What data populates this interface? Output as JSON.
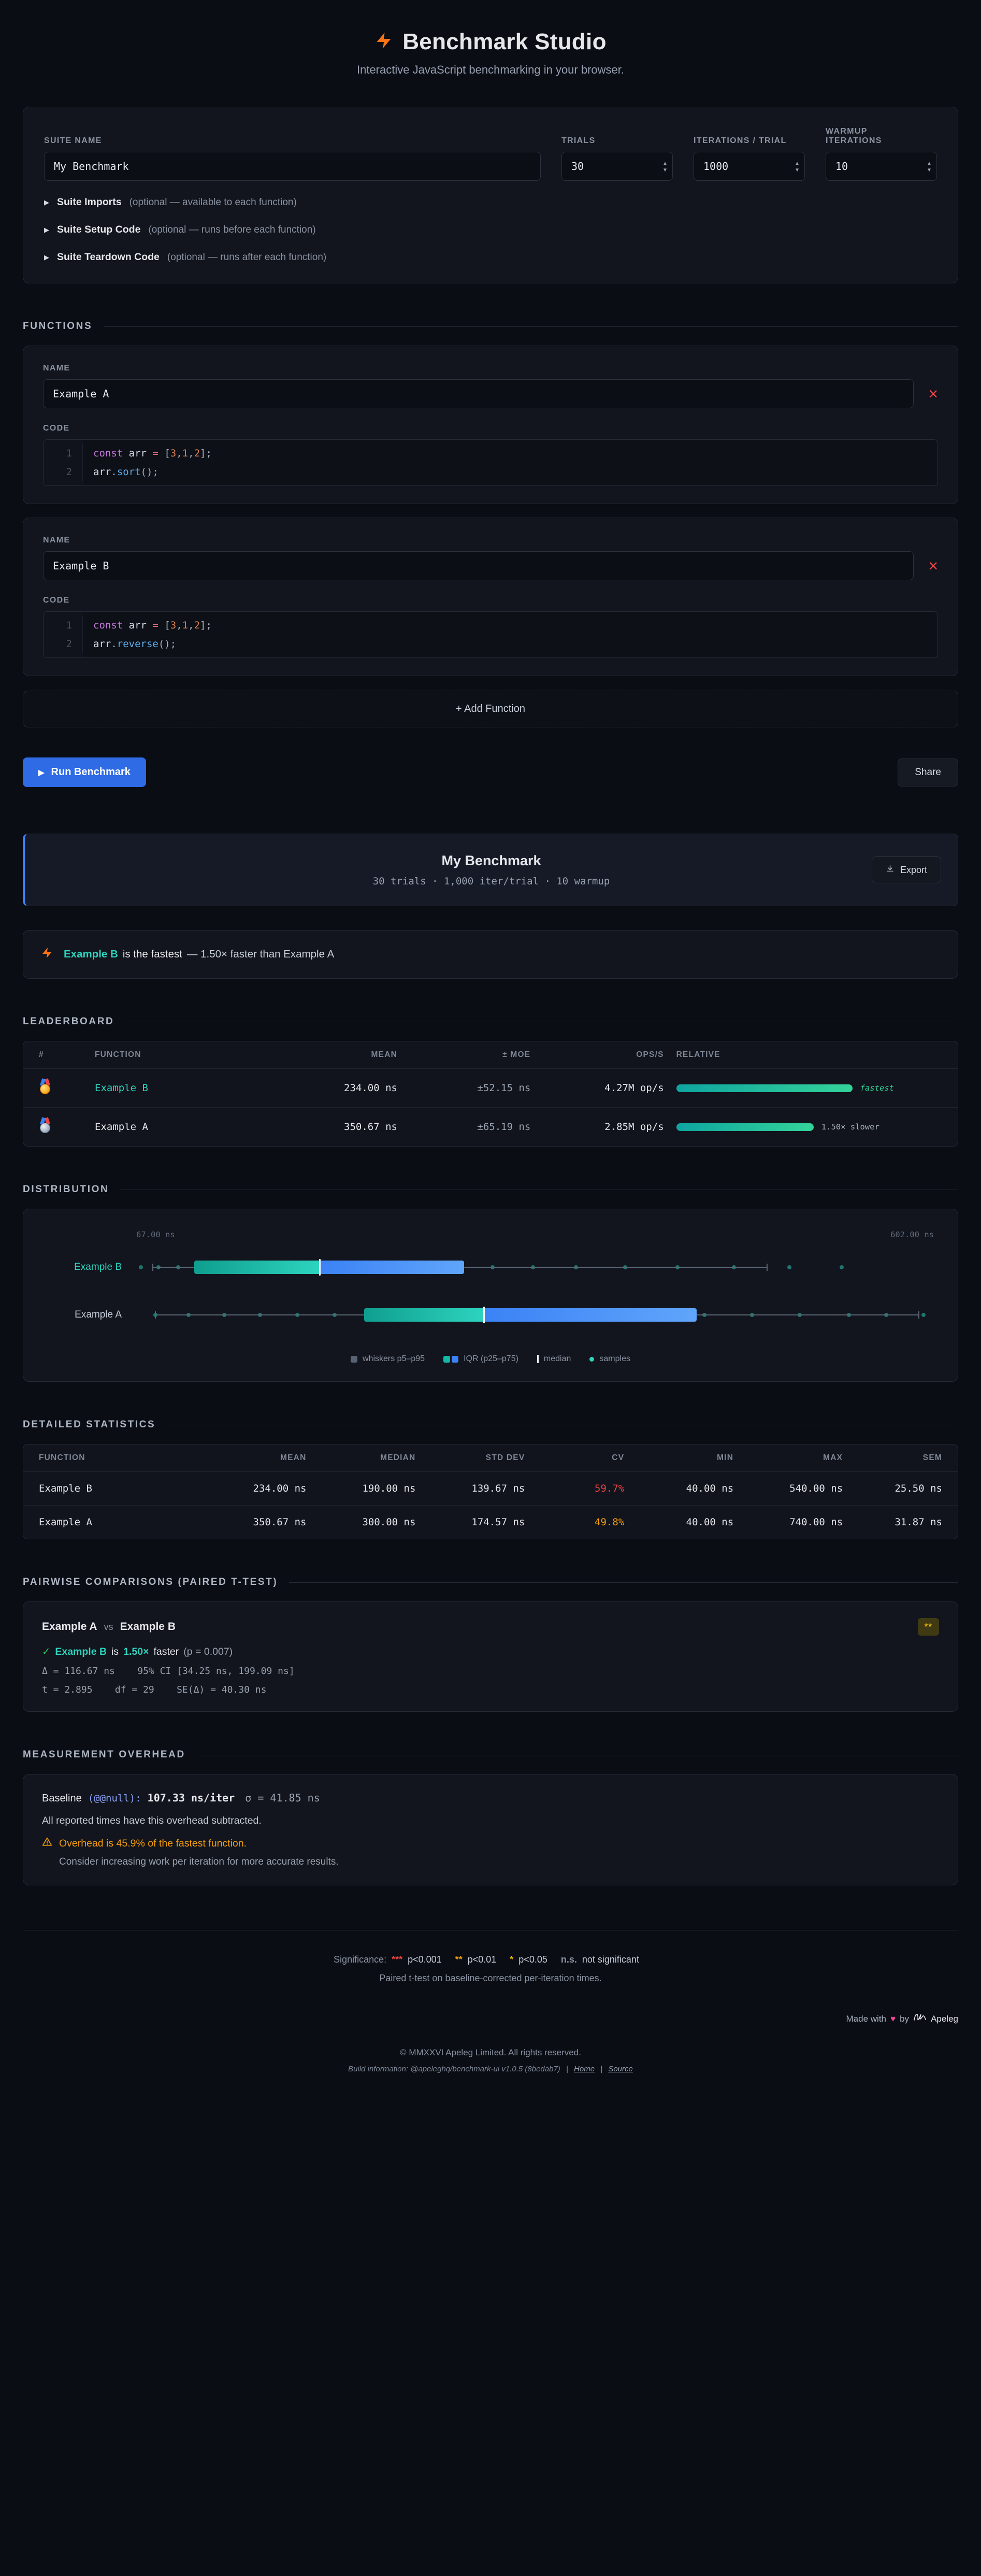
{
  "header": {
    "title": "Benchmark Studio",
    "subtitle": "Interactive JavaScript benchmarking in your browser."
  },
  "suite": {
    "name_label": "SUITE NAME",
    "name_value": "My Benchmark",
    "trials_label": "TRIALS",
    "trials_value": "30",
    "iterations_label": "ITERATIONS / TRIAL",
    "iterations_value": "1000",
    "warmup_label": "WARMUP\nITERATIONS",
    "warmup_value": "10",
    "collapsibles": [
      {
        "title": "Suite Imports",
        "hint": "(optional — available to each function)"
      },
      {
        "title": "Suite Setup Code",
        "hint": "(optional — runs before each function)"
      },
      {
        "title": "Suite Teardown Code",
        "hint": "(optional — runs after each function)"
      }
    ]
  },
  "functions": {
    "heading": "FUNCTIONS",
    "name_label": "NAME",
    "code_label": "CODE",
    "add_label": "+ Add Function",
    "items": [
      {
        "name": "Example A",
        "lines": [
          [
            [
              "kw",
              "const"
            ],
            [
              "pl",
              " arr "
            ],
            [
              "op",
              "="
            ],
            [
              "pl",
              " "
            ],
            [
              "pu",
              "["
            ],
            [
              "nu",
              "3"
            ],
            [
              "pu",
              ","
            ],
            [
              "nu",
              "1"
            ],
            [
              "pu",
              ","
            ],
            [
              "nu",
              "2"
            ],
            [
              "pu",
              "];"
            ]
          ],
          [
            [
              "pl",
              "arr"
            ],
            [
              "pu",
              "."
            ],
            [
              "fn",
              "sort"
            ],
            [
              "pu",
              "();"
            ]
          ]
        ]
      },
      {
        "name": "Example B",
        "lines": [
          [
            [
              "kw",
              "const"
            ],
            [
              "pl",
              " arr "
            ],
            [
              "op",
              "="
            ],
            [
              "pl",
              " "
            ],
            [
              "pu",
              "["
            ],
            [
              "nu",
              "3"
            ],
            [
              "pu",
              ","
            ],
            [
              "nu",
              "1"
            ],
            [
              "pu",
              ","
            ],
            [
              "nu",
              "2"
            ],
            [
              "pu",
              "];"
            ]
          ],
          [
            [
              "pl",
              "arr"
            ],
            [
              "pu",
              "."
            ],
            [
              "fn",
              "reverse"
            ],
            [
              "pu",
              "();"
            ]
          ]
        ]
      }
    ]
  },
  "actions": {
    "run_label": "Run Benchmark",
    "share_label": "Share"
  },
  "results": {
    "title": "My Benchmark",
    "meta": "30 trials · 1,000 iter/trial · 10 warmup",
    "export_label": "Export"
  },
  "callout": {
    "name": "Example B",
    "mid": "is the fastest",
    "detail": "— 1.50× faster than Example A"
  },
  "leaderboard": {
    "heading": "LEADERBOARD",
    "columns": [
      "#",
      "FUNCTION",
      "MEAN",
      "± MOE",
      "OPS/S",
      "RELATIVE"
    ],
    "rows": [
      {
        "medal": "gold",
        "name": "Example B",
        "mean": "234.00 ns",
        "moe": "±52.15 ns",
        "ops": "4.27M op/s",
        "bar_pct": 100,
        "relative": "fastest"
      },
      {
        "medal": "silver",
        "name": "Example A",
        "mean": "350.67 ns",
        "moe": "±65.19 ns",
        "ops": "2.85M op/s",
        "bar_pct": 78,
        "relative": "1.50× slower"
      }
    ]
  },
  "distribution": {
    "heading": "DISTRIBUTION",
    "chart_data": {
      "type": "boxplot",
      "x_min": 67,
      "x_max": 602,
      "x_min_label": "67.00 ns",
      "x_max_label": "602.00 ns",
      "series": [
        {
          "name": "Example B",
          "color": "#2dd4bf",
          "p5": 78,
          "p25": 106,
          "median": 190,
          "p75": 287,
          "p95": 490,
          "samples": [
            70,
            82,
            95,
            110,
            126,
            142,
            158,
            175,
            192,
            212,
            232,
            255,
            280,
            306,
            333,
            362,
            395,
            430,
            468,
            505,
            540
          ]
        },
        {
          "name": "Example A",
          "color": "#c3cad6",
          "p5": 80,
          "p25": 220,
          "median": 300,
          "p75": 443,
          "p95": 592,
          "samples": [
            80,
            102,
            126,
            150,
            175,
            200,
            226,
            252,
            278,
            304,
            330,
            358,
            388,
            418,
            448,
            480,
            512,
            545,
            570,
            595
          ]
        }
      ],
      "legend": [
        {
          "swatch": "whisker",
          "label": "whiskers p5–p95"
        },
        {
          "swatch": "iqr",
          "label": "IQR (p25–p75)"
        },
        {
          "swatch": "median",
          "label": "median"
        },
        {
          "swatch": "samples",
          "label": "samples"
        }
      ]
    }
  },
  "stats": {
    "heading": "DETAILED STATISTICS",
    "columns": [
      "FUNCTION",
      "MEAN",
      "MEDIAN",
      "STD DEV",
      "CV",
      "MIN",
      "MAX",
      "SEM"
    ],
    "rows": [
      {
        "name": "Example B",
        "mean": "234.00 ns",
        "median": "190.00 ns",
        "std": "139.67 ns",
        "cv": "59.7%",
        "cv_color": "#ef4444",
        "min": "40.00 ns",
        "max": "540.00 ns",
        "sem": "25.50 ns"
      },
      {
        "name": "Example A",
        "mean": "350.67 ns",
        "median": "300.00 ns",
        "std": "174.57 ns",
        "cv": "49.8%",
        "cv_color": "#f59e0b",
        "min": "40.00 ns",
        "max": "740.00 ns",
        "sem": "31.87 ns"
      }
    ]
  },
  "pairwise": {
    "heading": "PAIRWISE COMPARISONS (PAIRED T-TEST)",
    "left": "Example A",
    "vs": "vs",
    "right": "Example B",
    "badge": "**",
    "check": "✓",
    "winner": "Example B",
    "is_word": "is",
    "factor": "1.50×",
    "faster_word": "faster",
    "p_value": "(p = 0.007)",
    "delta_line": "Δ = 116.67 ns    95% CI [34.25 ns, 199.09 ns]",
    "t_line": "t = 2.895    df = 29    SE(Δ) = 40.30 ns"
  },
  "overhead": {
    "heading": "MEASUREMENT OVERHEAD",
    "baseline_label": "Baseline",
    "baseline_code": "(@@null):",
    "baseline_value": "107.33 ns/iter",
    "baseline_sigma": "σ = 41.85 ns",
    "note1": "All reported times have this overhead subtracted.",
    "warning": "Overhead is 45.9% of the fastest function.",
    "note2": "Consider increasing work per iteration for more accurate results."
  },
  "footer": {
    "significance_label": "Significance:",
    "markers": [
      {
        "sym": "***",
        "desc": "p<0.001",
        "color": "#ef4444"
      },
      {
        "sym": "**",
        "desc": "p<0.01",
        "color": "#f59e0b"
      },
      {
        "sym": "*",
        "desc": "p<0.05",
        "color": "#eab308"
      },
      {
        "sym": "n.s.",
        "desc": "not significant",
        "color": "#8b93a3"
      }
    ],
    "ttest_note": "Paired t-test on baseline-corrected per-iteration times.",
    "made_with": "Made with",
    "heart": "♥",
    "by": "by",
    "brand": "Apeleg",
    "copyright": "© MMXXVI Apeleg Limited. All rights reserved.",
    "build_prefix": "Build information:",
    "build_package": "@apeleghq/benchmark-ui v1.0.5 (8bedab7)",
    "links": [
      {
        "label": "Home"
      },
      {
        "label": "Source"
      }
    ]
  }
}
